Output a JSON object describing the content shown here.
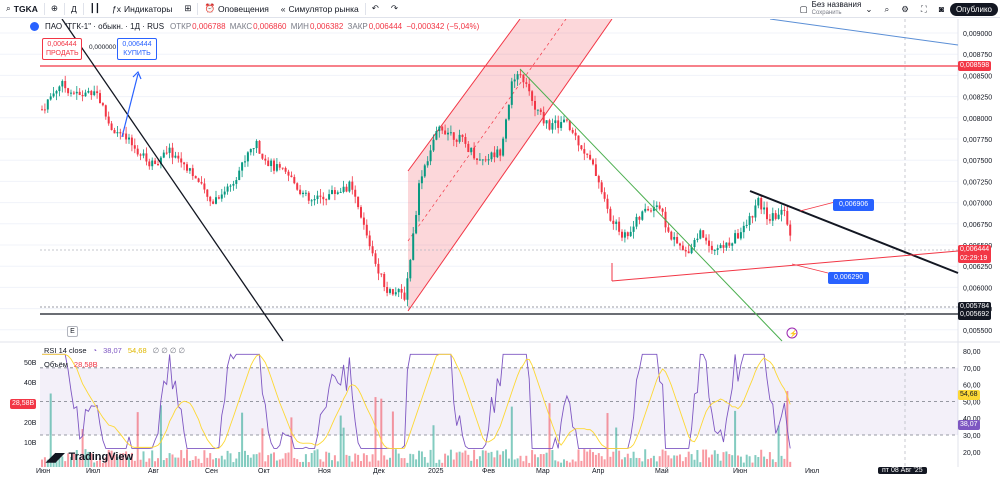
{
  "toolbar": {
    "symbol": "TGKA",
    "interval": "Д",
    "indicators_label": "Индикаторы",
    "alerts_label": "Оповещения",
    "simulator_label": "Симулятор рынка",
    "layout_name": "Без названия",
    "layout_status": "Сохранить",
    "publish_label": "Опублико"
  },
  "legend": {
    "title": "ПАО \"ТГК-1\" · обыкн. · 1Д · RUS",
    "open_label": "ОТКР",
    "open": "0,006788",
    "high_label": "МАКС",
    "high": "0,006860",
    "low_label": "МИН",
    "low": "0,006382",
    "close_label": "ЗАКР",
    "close": "0,006444",
    "change": "−0,000342 (−5,04%)"
  },
  "trade": {
    "sell_price": "0,006444",
    "sell_label": "ПРОДАТЬ",
    "spread": "0,000000",
    "buy_price": "0,006444",
    "buy_label": "КУПИТЬ"
  },
  "price_axis": [
    "0,009000",
    "0,008750",
    "0,008500",
    "0,008250",
    "0,008000",
    "0,007750",
    "0,007500",
    "0,007250",
    "0,007000",
    "0,006750",
    "0,006500",
    "0,006250",
    "0,006000",
    "0,005750",
    "0,005500"
  ],
  "price_tags": {
    "resistance": "0,008598",
    "current": "0,006444",
    "countdown": "02:29:19",
    "support_low": "0,005784",
    "support_low2": "0,005692",
    "label_upper": "0,006906",
    "label_lower": "0,006290"
  },
  "rsi": {
    "name": "RSI 14 close",
    "value": "38,07",
    "ma_value": "54,68",
    "placeholders": "∅ ∅ ∅ ∅",
    "axis": [
      "80,00",
      "70,00",
      "60,00",
      "50,00",
      "40,00",
      "30,00",
      "20,00"
    ],
    "tag_ma": "54,68",
    "tag_rsi": "38,07"
  },
  "volume": {
    "name": "Объём",
    "value": "28,58B",
    "tag": "28,58B",
    "axis": [
      "50B",
      "40B",
      "30B",
      "20B",
      "10B"
    ]
  },
  "x_axis": {
    "labels": [
      "Июн",
      "Июл",
      "Авг",
      "Сен",
      "Окт",
      "Ноя",
      "Дек",
      "2025",
      "Фев",
      "Мар",
      "Апр",
      "Май",
      "Июн",
      "Июл"
    ],
    "current_date": "пт 08 Авг '25"
  },
  "brand": "TradingView",
  "colors": {
    "up": "#089981",
    "down": "#f23645",
    "rsi_line": "#7e57c2",
    "rsi_ma": "#fdd835",
    "trend_green": "#4caf50",
    "trend_blue": "#2962ff"
  }
}
